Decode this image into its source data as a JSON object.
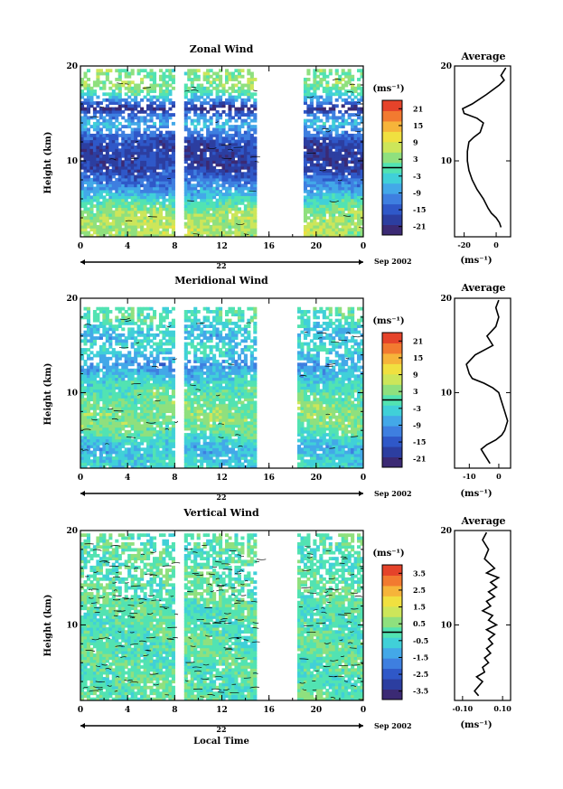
{
  "colors": {
    "scale": [
      "#3b2a74",
      "#2c3ea0",
      "#2f58c8",
      "#3e7fe0",
      "#43a8e8",
      "#40d0d8",
      "#52e3b2",
      "#8fe07e",
      "#cde65a",
      "#f0e040",
      "#f6b43a",
      "#f27a30",
      "#e5432a"
    ],
    "contour": "#000000",
    "axis": "#000000",
    "missing": "#ffffff"
  },
  "figure": {
    "xlabel": "Local Time",
    "date_axis": {
      "day_label": "22",
      "month_label": "Sep 2002"
    }
  },
  "chart_data": [
    {
      "type": "heatmap",
      "title": "Zonal Wind",
      "ylabel": "Height (km)",
      "xlabel": "Local Time",
      "xlim": [
        0,
        24
      ],
      "ylim": [
        2,
        20
      ],
      "x_ticks": [
        "0",
        "4",
        "8",
        "12",
        "16",
        "20",
        "0"
      ],
      "y_ticks": [
        "10",
        "20"
      ],
      "missing_intervals_hours": [
        [
          8,
          8.8
        ],
        [
          15,
          18.5
        ],
        [
          18.5,
          19
        ]
      ],
      "colorbar": {
        "unit": "(ms⁻¹)",
        "ticks": [
          "21",
          "15",
          "9",
          "3",
          "-3",
          "-9",
          "-15",
          "-21"
        ],
        "range": [
          -24,
          24
        ],
        "zero_contour": true
      },
      "profiles_ms": [
        {
          "height_km": 3,
          "value": 6
        },
        {
          "height_km": 4,
          "value": 6
        },
        {
          "height_km": 5,
          "value": 3
        },
        {
          "height_km": 6,
          "value": -3
        },
        {
          "height_km": 7,
          "value": -9
        },
        {
          "height_km": 8,
          "value": -12
        },
        {
          "height_km": 9,
          "value": -17
        },
        {
          "height_km": 10,
          "value": -18
        },
        {
          "height_km": 11,
          "value": -18
        },
        {
          "height_km": 12,
          "value": -17
        },
        {
          "height_km": 13,
          "value": -12
        },
        {
          "height_km": 14,
          "value": -6
        },
        {
          "height_km": 15,
          "value": -12
        },
        {
          "height_km": 15.5,
          "value": -21
        },
        {
          "height_km": 16,
          "value": -14
        },
        {
          "height_km": 17,
          "value": -2
        },
        {
          "height_km": 18,
          "value": 4
        },
        {
          "height_km": 19,
          "value": 2
        }
      ]
    },
    {
      "type": "line",
      "title": "Average",
      "xlabel": "(ms⁻¹)",
      "ylim": [
        2,
        20
      ],
      "xlim": [
        -26,
        9
      ],
      "x_ticks": [
        "-20",
        "0"
      ],
      "y_ticks": [
        "10",
        "20"
      ],
      "x": [
        3,
        2,
        0,
        -3,
        -5,
        -8,
        -12,
        -15,
        -17,
        -18,
        -18,
        -17,
        -14,
        -10,
        -8,
        -12,
        -20,
        -21,
        -15,
        -6,
        2,
        5,
        3,
        6
      ],
      "y": [
        3,
        3.5,
        4,
        4.5,
        5,
        6,
        7,
        8,
        9,
        10,
        11,
        12,
        12.5,
        13,
        14,
        14.5,
        15,
        15.5,
        16,
        17,
        18,
        18.5,
        19,
        19.8
      ]
    },
    {
      "type": "heatmap",
      "title": "Meridional Wind",
      "ylabel": "Height (km)",
      "xlabel": "Local Time",
      "xlim": [
        0,
        24
      ],
      "ylim": [
        2,
        20
      ],
      "x_ticks": [
        "0",
        "4",
        "8",
        "12",
        "16",
        "20",
        "0"
      ],
      "y_ticks": [
        "10",
        "20"
      ],
      "missing_intervals_hours": [
        [
          8,
          8.8
        ],
        [
          15,
          18.5
        ]
      ],
      "colorbar": {
        "unit": "(ms⁻¹)",
        "ticks": [
          "21",
          "15",
          "9",
          "3",
          "-3",
          "-9",
          "-15",
          "-21"
        ],
        "range": [
          -24,
          24
        ],
        "zero_contour": true
      },
      "profiles_ms": [
        {
          "height_km": 3,
          "value": -3
        },
        {
          "height_km": 4,
          "value": -6
        },
        {
          "height_km": 5,
          "value": -3
        },
        {
          "height_km": 6,
          "value": 1
        },
        {
          "height_km": 7,
          "value": 3
        },
        {
          "height_km": 8,
          "value": 3
        },
        {
          "height_km": 9,
          "value": 2
        },
        {
          "height_km": 10,
          "value": 1
        },
        {
          "height_km": 11,
          "value": -2
        },
        {
          "height_km": 12,
          "value": -6
        },
        {
          "height_km": 13,
          "value": -9
        },
        {
          "height_km": 14,
          "value": -5
        },
        {
          "height_km": 15,
          "value": -2
        },
        {
          "height_km": 16,
          "value": -6
        },
        {
          "height_km": 17,
          "value": -3
        },
        {
          "height_km": 18,
          "value": 0
        },
        {
          "height_km": 19,
          "value": -1
        }
      ]
    },
    {
      "type": "line",
      "title": "Average",
      "xlabel": "(ms⁻¹)",
      "ylim": [
        2,
        20
      ],
      "xlim": [
        -15,
        4
      ],
      "x_ticks": [
        "-10",
        "0"
      ],
      "y_ticks": [
        "10",
        "20"
      ],
      "x": [
        -3,
        -4,
        -5,
        -6,
        -4,
        -1,
        1,
        2,
        3,
        2,
        1,
        0,
        -2,
        -5,
        -9,
        -10,
        -11,
        -8,
        -5,
        -2,
        -3,
        -4,
        -1,
        0,
        -1,
        0
      ],
      "y": [
        2.5,
        3,
        3.5,
        4,
        4.5,
        5,
        5.5,
        6,
        7,
        8,
        9,
        10,
        10.5,
        11,
        11.5,
        12,
        13,
        14,
        14.5,
        15,
        15.5,
        16,
        17,
        18,
        19,
        19.8
      ]
    },
    {
      "type": "heatmap",
      "title": "Vertical Wind",
      "ylabel": "Height (km)",
      "xlabel": "Local Time",
      "xlim": [
        0,
        24
      ],
      "ylim": [
        2,
        20
      ],
      "x_ticks": [
        "0",
        "4",
        "8",
        "12",
        "16",
        "20",
        "0"
      ],
      "y_ticks": [
        "10",
        "20"
      ],
      "missing_intervals_hours": [
        [
          8,
          8.8
        ],
        [
          15,
          18.5
        ]
      ],
      "colorbar": {
        "unit": "(ms⁻¹)",
        "ticks": [
          "3.5",
          "2.5",
          "1.5",
          "0.5",
          "-0.5",
          "-1.5",
          "-2.5",
          "-3.5"
        ],
        "range": [
          -4,
          4
        ],
        "zero_contour": true
      },
      "profiles_ms": [
        {
          "height_km": 3,
          "value": 0.1
        },
        {
          "height_km": 6,
          "value": 0.0
        },
        {
          "height_km": 9,
          "value": 0.1
        },
        {
          "height_km": 12,
          "value": 0.0
        },
        {
          "height_km": 15,
          "value": 0.1
        },
        {
          "height_km": 18,
          "value": 0.0
        }
      ]
    },
    {
      "type": "line",
      "title": "Average",
      "xlabel": "(ms⁻¹)",
      "ylim": [
        2,
        20
      ],
      "xlim": [
        -0.14,
        0.14
      ],
      "x_ticks": [
        "-0.10",
        "0.10"
      ],
      "y_ticks": [
        "10",
        "20"
      ],
      "x": [
        -0.02,
        -0.04,
        -0.02,
        0.0,
        -0.03,
        0.01,
        0.0,
        0.03,
        0.01,
        0.04,
        0.02,
        0.05,
        0.03,
        0.06,
        0.02,
        0.07,
        0.03,
        0.05,
        0.0,
        0.04,
        0.02,
        0.06,
        0.03,
        0.07,
        0.04,
        0.08,
        0.02,
        0.06,
        0.01,
        0.03,
        0.0,
        0.02
      ],
      "y": [
        2.5,
        3,
        3.5,
        4,
        4.5,
        5,
        5.5,
        6,
        6.5,
        7,
        7.5,
        8,
        8.5,
        9,
        9.5,
        10,
        10.5,
        11,
        11.5,
        12,
        12.5,
        13,
        13.5,
        14,
        14.5,
        15,
        15.5,
        16,
        17,
        18,
        19,
        19.8
      ]
    }
  ]
}
